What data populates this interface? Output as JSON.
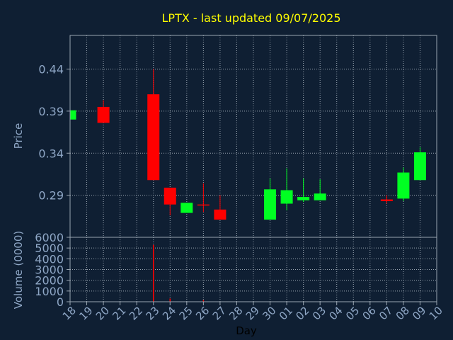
{
  "chart_data": {
    "type": "candlestick",
    "title": "LPTX - last updated 09/07/2025",
    "xlabel": "Day",
    "price_panel": {
      "ylabel": "Price",
      "ylim": [
        0.24,
        0.48
      ],
      "yticks": [
        "0.44",
        "0.39",
        "0.34",
        "0.29"
      ],
      "ytick_values": [
        0.44,
        0.39,
        0.34,
        0.29
      ],
      "grid": true
    },
    "volume_panel": {
      "ylabel": "Volume (0000)",
      "ylim": [
        0,
        6000
      ],
      "yticks": [
        "6000",
        "5000",
        "4000",
        "3000",
        "2000",
        "1000",
        "0"
      ],
      "ytick_values": [
        6000,
        5000,
        4000,
        3000,
        2000,
        1000,
        0
      ],
      "grid": true
    },
    "x_ticks": [
      "18",
      "19",
      "20",
      "21",
      "22",
      "23",
      "24",
      "25",
      "26",
      "27",
      "28",
      "29",
      "30",
      "01",
      "02",
      "03",
      "04",
      "05",
      "06",
      "07",
      "08",
      "09",
      "10"
    ],
    "candles": [
      {
        "day": "18",
        "open": 0.38,
        "close": 0.391,
        "high": 0.391,
        "low": 0.38
      },
      {
        "day": "20",
        "open": 0.395,
        "close": 0.376,
        "high": 0.403,
        "low": 0.376
      },
      {
        "day": "23",
        "open": 0.41,
        "close": 0.308,
        "high": 0.44,
        "low": 0.308
      },
      {
        "day": "24",
        "open": 0.299,
        "close": 0.279,
        "high": 0.299,
        "low": 0.266
      },
      {
        "day": "25",
        "open": 0.269,
        "close": 0.281,
        "high": 0.281,
        "low": 0.269
      },
      {
        "day": "26",
        "open": 0.279,
        "close": 0.278,
        "high": 0.304,
        "low": 0.27
      },
      {
        "day": "27",
        "open": 0.273,
        "close": 0.261,
        "high": 0.29,
        "low": 0.261
      },
      {
        "day": "30",
        "open": 0.261,
        "close": 0.297,
        "high": 0.31,
        "low": 0.261
      },
      {
        "day": "01",
        "open": 0.28,
        "close": 0.296,
        "high": 0.322,
        "low": 0.272
      },
      {
        "day": "02",
        "open": 0.284,
        "close": 0.288,
        "high": 0.31,
        "low": 0.282
      },
      {
        "day": "03",
        "open": 0.284,
        "close": 0.292,
        "high": 0.309,
        "low": 0.284
      },
      {
        "day": "07",
        "open": 0.285,
        "close": 0.283,
        "high": 0.29,
        "low": 0.28
      },
      {
        "day": "08",
        "open": 0.286,
        "close": 0.317,
        "high": 0.323,
        "low": 0.283
      },
      {
        "day": "09",
        "open": 0.308,
        "close": 0.341,
        "high": 0.347,
        "low": 0.308
      }
    ],
    "volume": [
      {
        "day": "23",
        "value": 5300
      },
      {
        "day": "24",
        "value": 300
      },
      {
        "day": "26",
        "value": 150
      }
    ],
    "colors": {
      "background": "#0f1f33",
      "up": "#00ff22",
      "down": "#ff0000",
      "grid": "#9aa6b2",
      "axis_text": "#8fa7c6",
      "title": "#ffff00",
      "xlabel": "#000000"
    }
  }
}
